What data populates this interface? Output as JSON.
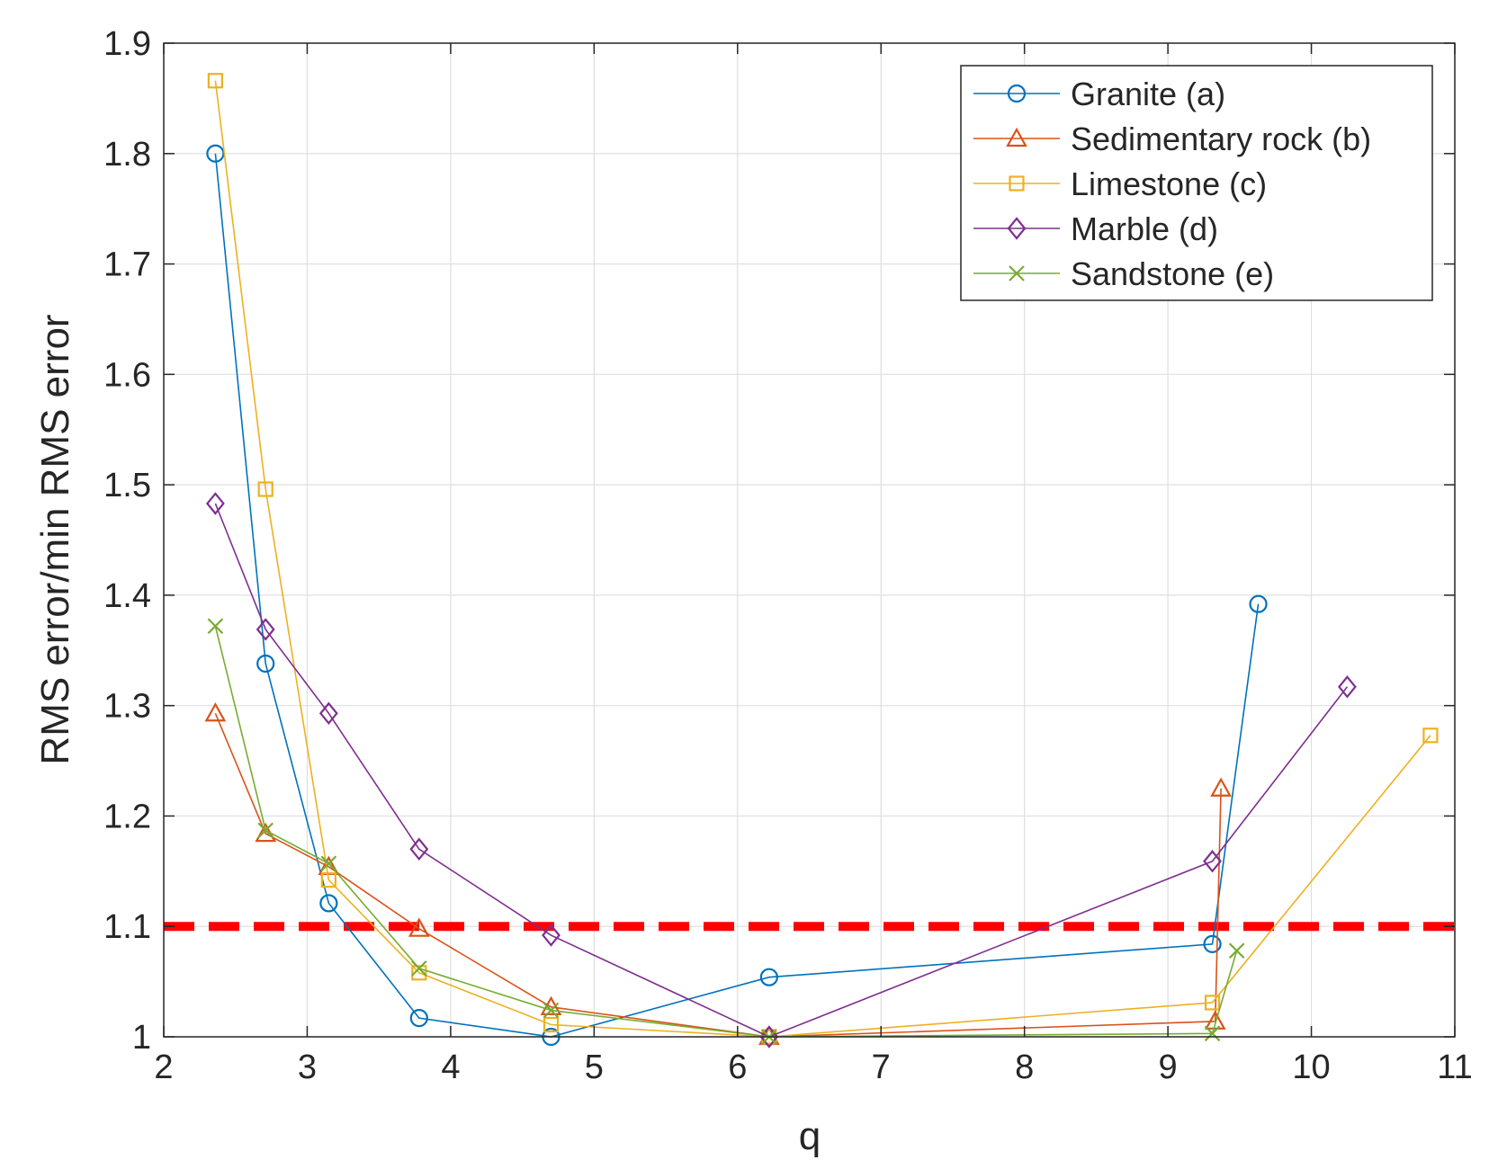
{
  "chart_data": {
    "type": "line",
    "xlabel": "q",
    "ylabel": "RMS error/min RMS error",
    "xlim": [
      2,
      11
    ],
    "ylim": [
      1,
      1.9
    ],
    "xticks": [
      "2",
      "3",
      "4",
      "5",
      "6",
      "7",
      "8",
      "9",
      "10",
      "11"
    ],
    "yticks": [
      "1",
      "1.1",
      "1.2",
      "1.3",
      "1.4",
      "1.5",
      "1.6",
      "1.7",
      "1.8",
      "1.9"
    ],
    "grid": true,
    "legend_position": "top-right",
    "reference_line": {
      "y": 1.1,
      "color": "#ff0000",
      "style": "dashed"
    },
    "series": [
      {
        "name": "Granite (a)",
        "color": "#0072bd",
        "marker": "circle",
        "x": [
          2.36,
          2.71,
          3.15,
          3.78,
          4.7,
          6.22,
          9.31,
          9.63
        ],
        "y": [
          1.8,
          1.338,
          1.121,
          1.017,
          1.0,
          1.054,
          1.084,
          1.392
        ]
      },
      {
        "name": "Sedimentary rock (b)",
        "color": "#d95319",
        "marker": "triangle",
        "x": [
          2.36,
          2.71,
          3.15,
          3.78,
          4.7,
          6.22,
          9.33,
          9.37
        ],
        "y": [
          1.293,
          1.184,
          1.154,
          1.098,
          1.027,
          1.0,
          1.014,
          1.225
        ]
      },
      {
        "name": "Limestone (c)",
        "color": "#edb120",
        "marker": "square",
        "x": [
          2.36,
          2.71,
          3.15,
          3.78,
          4.7,
          6.22,
          9.31,
          10.83
        ],
        "y": [
          1.866,
          1.496,
          1.142,
          1.058,
          1.011,
          1.0,
          1.031,
          1.273
        ]
      },
      {
        "name": "Marble (d)",
        "color": "#7e2f8e",
        "marker": "diamond",
        "x": [
          2.36,
          2.71,
          3.15,
          3.78,
          4.7,
          6.22,
          9.31,
          10.25
        ],
        "y": [
          1.483,
          1.369,
          1.293,
          1.17,
          1.092,
          1.0,
          1.159,
          1.317
        ]
      },
      {
        "name": "Sandstone (e)",
        "color": "#77ac30",
        "marker": "x",
        "x": [
          2.36,
          2.71,
          3.15,
          3.78,
          4.7,
          6.22,
          9.31,
          9.48
        ],
        "y": [
          1.372,
          1.187,
          1.157,
          1.062,
          1.024,
          1.0,
          1.003,
          1.078
        ]
      }
    ]
  }
}
